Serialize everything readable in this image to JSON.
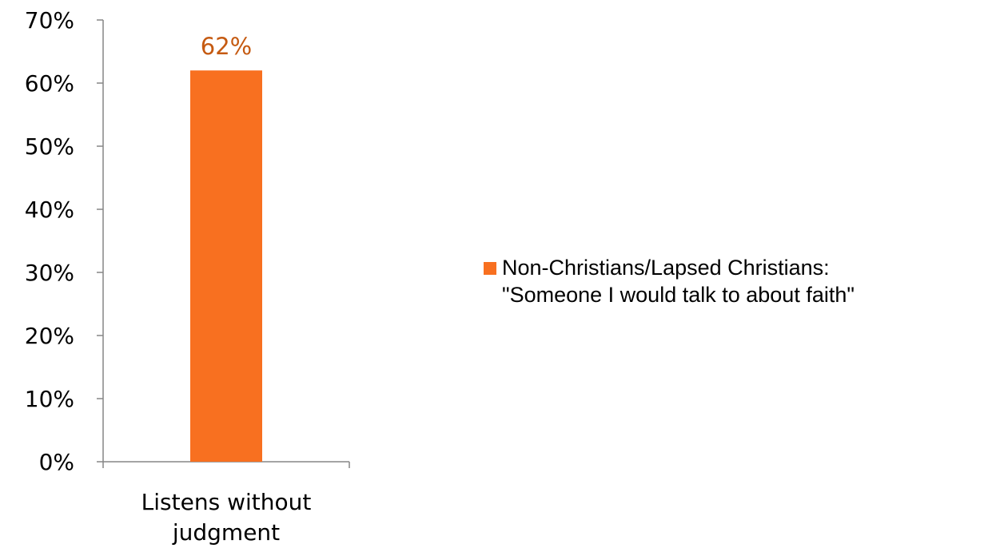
{
  "chart_data": {
    "type": "bar",
    "categories": [
      "Listens without judgment"
    ],
    "category_lines": [
      [
        "Listens without",
        "judgment"
      ]
    ],
    "series": [
      {
        "name": "Non-Christians/Lapsed Christians: \"Someone I would talk to about faith\"",
        "name_lines": [
          "Non-Christians/Lapsed Christians:",
          "\"Someone I would talk to about faith\""
        ],
        "values": [
          62
        ],
        "data_labels": [
          "62%"
        ],
        "color": "#f87020"
      }
    ],
    "title": "",
    "xlabel": "",
    "ylabel": "",
    "ylim": [
      0,
      70
    ],
    "yticks": [
      0,
      10,
      20,
      30,
      40,
      50,
      60,
      70
    ],
    "ytick_labels": [
      "0%",
      "10%",
      "20%",
      "30%",
      "40%",
      "50%",
      "60%",
      "70%"
    ],
    "grid": false,
    "legend_position": "right",
    "data_label_color": "#c55a11",
    "axis_color": "#868686"
  }
}
